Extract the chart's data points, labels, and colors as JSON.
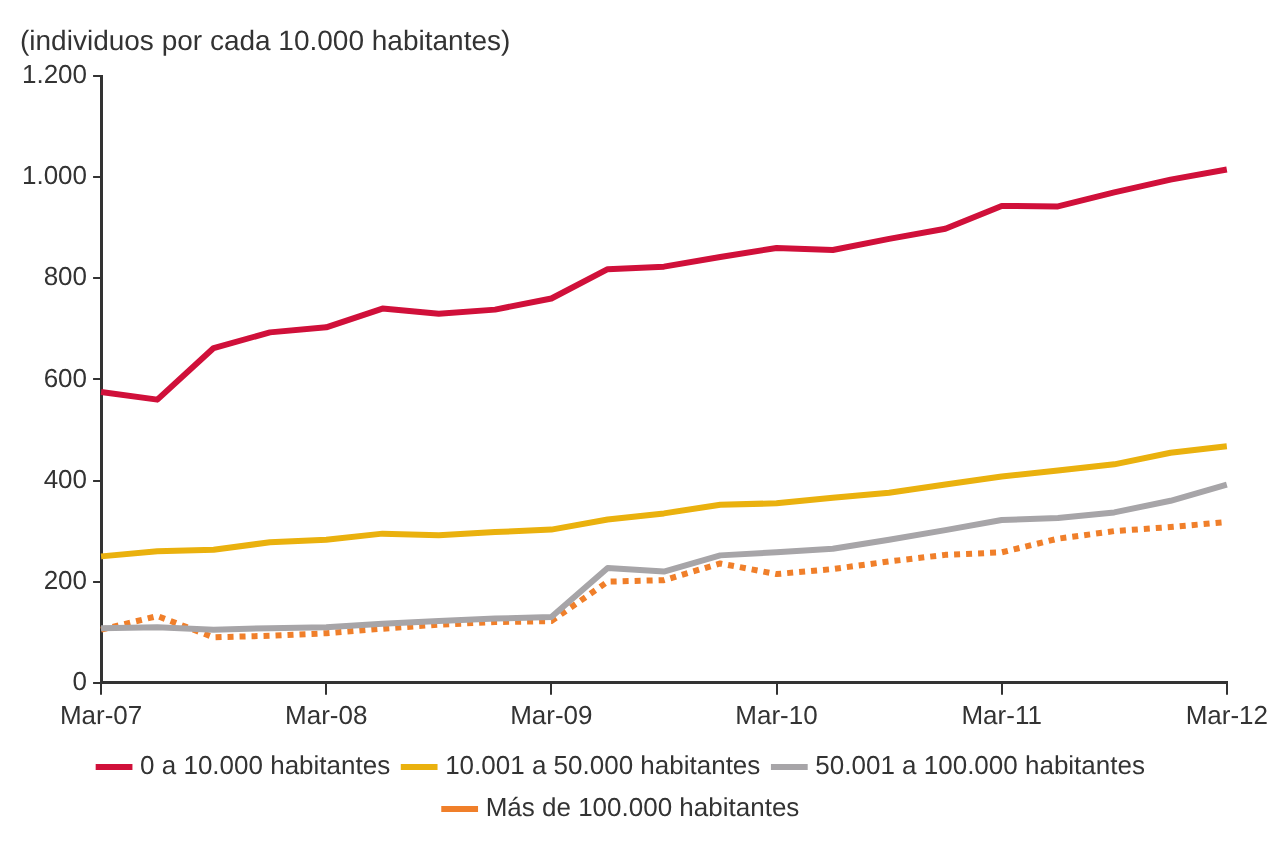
{
  "chart_data": {
    "type": "line",
    "ylabel": "(individuos por cada 10.000 habitantes)",
    "categories": [
      "Mar-07",
      null,
      null,
      null,
      "Mar-08",
      null,
      null,
      null,
      "Mar-09",
      null,
      null,
      null,
      "Mar-10",
      null,
      null,
      null,
      "Mar-11",
      null,
      null,
      null,
      "Mar-12"
    ],
    "series": [
      {
        "name": "0 a 10.000 habitantes",
        "color": "#d0103a",
        "line_style": "solid",
        "values": [
          575,
          560,
          662,
          693,
          703,
          740,
          730,
          738,
          760,
          818,
          823,
          842,
          860,
          856,
          878,
          898,
          943,
          942,
          970,
          995,
          1015
        ]
      },
      {
        "name": "10.001 a 50.000 habitantes",
        "color": "#eab10e",
        "line_style": "solid",
        "values": [
          250,
          260,
          263,
          278,
          283,
          295,
          292,
          298,
          303,
          323,
          335,
          352,
          355,
          366,
          376,
          392,
          408,
          420,
          432,
          455,
          468
        ]
      },
      {
        "name": "50.001 a 100.000 habitantes",
        "color": "#a7a5a8",
        "line_style": "solid",
        "values": [
          108,
          110,
          105,
          108,
          110,
          117,
          122,
          127,
          130,
          227,
          220,
          252,
          258,
          265,
          283,
          302,
          322,
          326,
          337,
          360,
          392
        ]
      },
      {
        "name": "Más de 100.000 habitantes",
        "color": "#f07f2a",
        "line_style": "dotted",
        "values": [
          105,
          132,
          90,
          93,
          98,
          107,
          115,
          120,
          122,
          200,
          203,
          236,
          215,
          225,
          240,
          253,
          258,
          285,
          300,
          308,
          318
        ]
      }
    ],
    "ylim": [
      0,
      1200
    ],
    "yticks": [
      0,
      {
        "value": 200,
        "label": "200"
      },
      {
        "value": 400,
        "label": "400"
      },
      {
        "value": 600,
        "label": "600"
      },
      {
        "value": 800,
        "label": "800"
      },
      {
        "value": 1000,
        "label": "1.000"
      },
      {
        "value": 1200,
        "label": "1.200"
      }
    ],
    "grid": false,
    "legend": "bottom",
    "marker": "none"
  }
}
